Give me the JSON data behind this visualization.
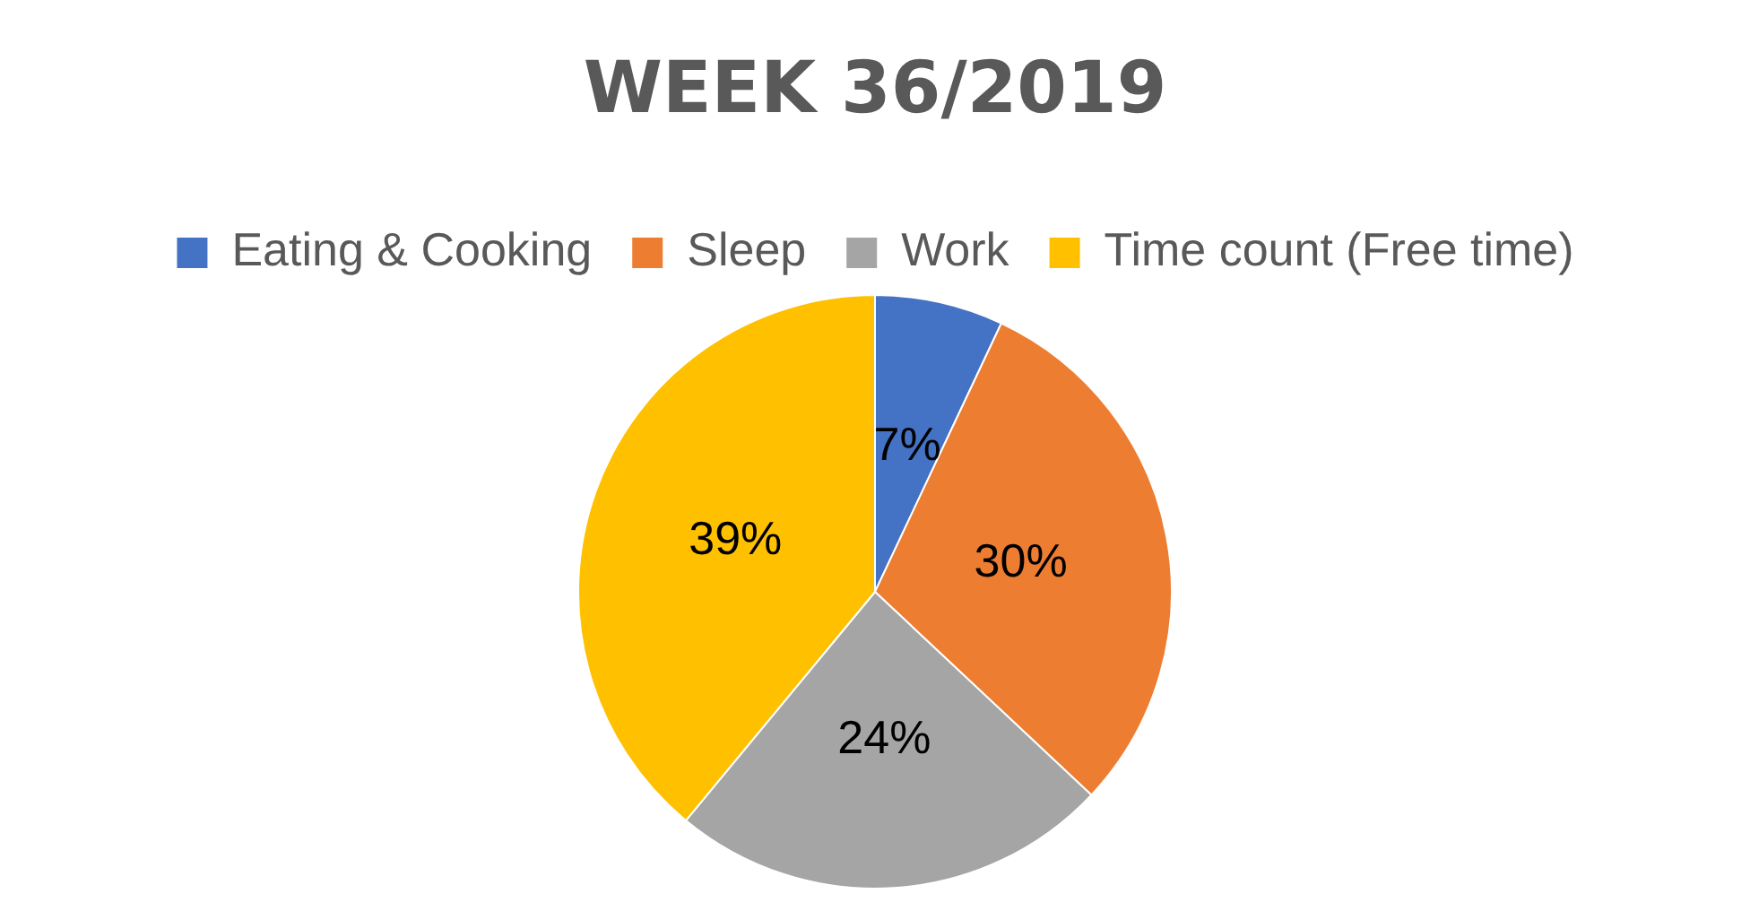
{
  "chart_data": {
    "type": "pie",
    "title": "WEEK 36/2019",
    "categories": [
      "Eating & Cooking",
      "Sleep",
      "Work",
      "Time count (Free time)"
    ],
    "values": [
      7,
      30,
      24,
      39
    ],
    "colors": [
      "#4472c4",
      "#ed7d31",
      "#a5a5a5",
      "#ffc000"
    ],
    "value_labels": [
      "7%",
      "30%",
      "24%",
      "39%"
    ],
    "legend": "top"
  }
}
